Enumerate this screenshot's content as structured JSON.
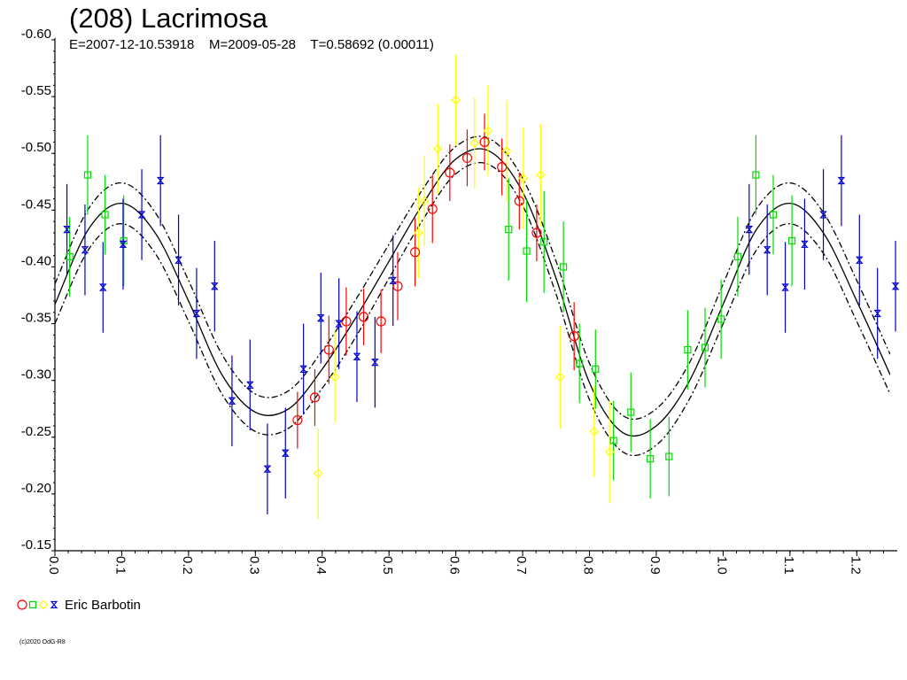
{
  "header": {
    "title": "(208) Lacrimosa",
    "subtitle": "E=2007-12-10.53918    M=2009-05-28    T=0.58692 (0.00011)"
  },
  "legend": {
    "label": "Eric Barbotin"
  },
  "footer": {
    "copyright": "(c)2020 OdG-R8"
  },
  "colors": {
    "red": "#ff0000",
    "green": "#00dd00",
    "yellow": "#ffff00",
    "blue": "#0000cc",
    "curve": "#000000"
  },
  "chart_data": {
    "type": "scatter",
    "title": "(208) Lacrimosa",
    "xlabel": "",
    "ylabel": "",
    "xlim": [
      0.0,
      1.25
    ],
    "ylim": [
      -0.6,
      -0.15
    ],
    "y_inverted": true,
    "grid": false,
    "legend_position": "bottom-left",
    "x_ticks": [
      "0.0",
      "0.1",
      "0.2",
      "0.3",
      "0.4",
      "0.5",
      "0.6",
      "0.7",
      "0.8",
      "0.9",
      "1.0",
      "1.1",
      "1.2"
    ],
    "y_ticks": [
      "-0.60",
      "-0.55",
      "-0.50",
      "-0.45",
      "-0.40",
      "-0.35",
      "-0.30",
      "-0.25",
      "-0.20",
      "-0.15"
    ],
    "series": [
      {
        "name": "",
        "color": "red",
        "marker": "circle",
        "x": [
          0.363,
          0.389,
          0.41,
          0.436,
          0.462,
          0.488,
          0.513,
          0.539,
          0.565,
          0.591,
          0.617,
          0.643,
          0.669,
          0.695,
          0.721,
          0.777
        ],
        "y": [
          -0.265,
          -0.285,
          -0.327,
          -0.352,
          -0.356,
          -0.352,
          -0.383,
          -0.413,
          -0.451,
          -0.483,
          -0.496,
          -0.51,
          -0.488,
          -0.458,
          -0.43,
          -0.339
        ],
        "err": [
          0.025,
          0.025,
          0.03,
          0.03,
          0.025,
          0.028,
          0.03,
          0.03,
          0.03,
          0.025,
          0.025,
          0.025,
          0.025,
          0.025,
          0.025,
          0.03
        ]
      },
      {
        "name": "",
        "color": "green",
        "marker": "square",
        "x": [
          0.022,
          0.049,
          0.075,
          0.103,
          0.679,
          0.706,
          0.732,
          0.761,
          0.785,
          0.809,
          0.836,
          0.862,
          0.891,
          0.919,
          0.947,
          0.973,
          0.997,
          1.022,
          1.049,
          1.075,
          1.103
        ],
        "y": [
          -0.409,
          -0.481,
          -0.446,
          -0.423,
          -0.433,
          -0.414,
          -0.422,
          -0.4,
          -0.315,
          -0.31,
          -0.247,
          -0.272,
          -0.231,
          -0.233,
          -0.327,
          -0.329,
          -0.354,
          -0.409,
          -0.481,
          -0.446,
          -0.423
        ],
        "err": [
          0.035,
          0.035,
          0.035,
          0.04,
          0.045,
          0.045,
          0.045,
          0.04,
          0.035,
          0.035,
          0.035,
          0.035,
          0.035,
          0.035,
          0.035,
          0.035,
          0.035,
          0.035,
          0.035,
          0.035,
          0.04
        ]
      },
      {
        "name": "",
        "color": "yellow",
        "marker": "diamond",
        "x": [
          0.394,
          0.419,
          0.544,
          0.553,
          0.573,
          0.6,
          0.628,
          0.648,
          0.676,
          0.701,
          0.727,
          0.756,
          0.807,
          0.83
        ],
        "y": [
          -0.218,
          -0.303,
          -0.43,
          -0.458,
          -0.504,
          -0.547,
          -0.509,
          -0.52,
          -0.502,
          -0.478,
          -0.481,
          -0.303,
          -0.255,
          -0.237
        ],
        "err": [
          0.04,
          0.04,
          0.04,
          0.04,
          0.04,
          0.04,
          0.04,
          0.04,
          0.045,
          0.045,
          0.045,
          0.045,
          0.04,
          0.045
        ]
      },
      {
        "name": "",
        "color": "blue",
        "marker": "hourglass",
        "x": [
          0.018,
          0.045,
          0.072,
          0.102,
          0.13,
          0.158,
          0.185,
          0.212,
          0.239,
          0.265,
          0.292,
          0.318,
          0.345,
          0.372,
          0.398,
          0.425,
          0.452,
          0.479,
          0.506,
          1.039,
          1.066,
          1.093,
          1.122,
          1.15,
          1.177,
          1.204,
          1.231,
          1.258
        ],
        "y": [
          -0.433,
          -0.415,
          -0.382,
          -0.42,
          -0.446,
          -0.476,
          -0.406,
          -0.359,
          -0.383,
          -0.282,
          -0.296,
          -0.222,
          -0.236,
          -0.31,
          -0.355,
          -0.35,
          -0.321,
          -0.316,
          -0.388,
          -0.433,
          -0.415,
          -0.382,
          -0.42,
          -0.446,
          -0.476,
          -0.406,
          -0.359,
          -0.383
        ],
        "err": [
          0.04,
          0.04,
          0.04,
          0.04,
          0.04,
          0.04,
          0.04,
          0.04,
          0.04,
          0.04,
          0.04,
          0.04,
          0.04,
          0.04,
          0.04,
          0.04,
          0.04,
          0.04,
          0.04,
          0.04,
          0.04,
          0.04,
          0.04,
          0.04,
          0.04,
          0.04,
          0.04,
          0.04
        ]
      }
    ],
    "fit_curve": {
      "style": "solid",
      "x": [
        0.0,
        0.05,
        0.1,
        0.15,
        0.2,
        0.25,
        0.3,
        0.35,
        0.4,
        0.45,
        0.5,
        0.55,
        0.6,
        0.65,
        0.7,
        0.75,
        0.8,
        0.85,
        0.9,
        0.95,
        1.0,
        1.05,
        1.1,
        1.15,
        1.2,
        1.25
      ],
      "y": [
        -0.367,
        -0.433,
        -0.456,
        -0.43,
        -0.37,
        -0.305,
        -0.272,
        -0.275,
        -0.31,
        -0.355,
        -0.405,
        -0.455,
        -0.495,
        -0.502,
        -0.466,
        -0.39,
        -0.298,
        -0.254,
        -0.26,
        -0.3,
        -0.367,
        -0.433,
        -0.456,
        -0.43,
        -0.37,
        -0.305
      ]
    },
    "envelope_upper": {
      "style": "dash-dot",
      "x": [
        0.0,
        0.05,
        0.1,
        0.15,
        0.2,
        0.25,
        0.3,
        0.35,
        0.4,
        0.45,
        0.5,
        0.55,
        0.6,
        0.65,
        0.7,
        0.75,
        0.8,
        0.85,
        0.9,
        0.95,
        1.0,
        1.05,
        1.1,
        1.15,
        1.2,
        1.25
      ],
      "y": [
        -0.385,
        -0.451,
        -0.474,
        -0.448,
        -0.388,
        -0.323,
        -0.288,
        -0.291,
        -0.326,
        -0.371,
        -0.42,
        -0.468,
        -0.506,
        -0.513,
        -0.478,
        -0.405,
        -0.315,
        -0.269,
        -0.275,
        -0.316,
        -0.385,
        -0.451,
        -0.474,
        -0.448,
        -0.388,
        -0.323
      ]
    },
    "envelope_lower": {
      "style": "dash-dot",
      "x": [
        0.0,
        0.05,
        0.1,
        0.15,
        0.2,
        0.25,
        0.3,
        0.35,
        0.4,
        0.45,
        0.5,
        0.55,
        0.6,
        0.65,
        0.7,
        0.75,
        0.8,
        0.85,
        0.9,
        0.95,
        1.0,
        1.05,
        1.1,
        1.15,
        1.2,
        1.25
      ],
      "y": [
        -0.35,
        -0.415,
        -0.438,
        -0.412,
        -0.352,
        -0.288,
        -0.255,
        -0.258,
        -0.293,
        -0.338,
        -0.39,
        -0.441,
        -0.482,
        -0.49,
        -0.454,
        -0.376,
        -0.283,
        -0.237,
        -0.243,
        -0.284,
        -0.35,
        -0.415,
        -0.438,
        -0.412,
        -0.352,
        -0.288
      ]
    }
  }
}
